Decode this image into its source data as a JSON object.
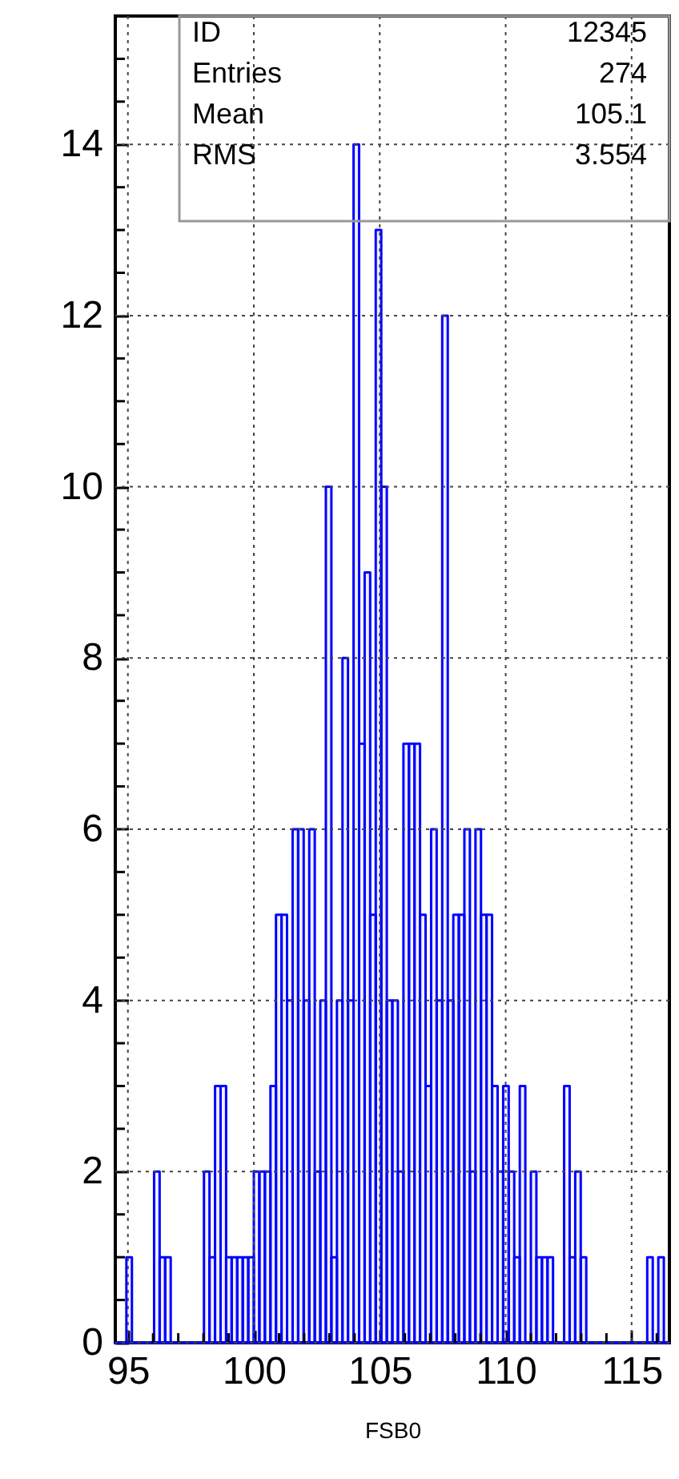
{
  "chart_data": {
    "type": "histogram",
    "xlabel": "FSB0",
    "color": "#0000ff",
    "bins": [
      94.5,
      94.72,
      94.94,
      95.16,
      95.38,
      95.6,
      95.82,
      96.04,
      96.26,
      96.48,
      96.7,
      96.92,
      97.14,
      97.36,
      97.58,
      97.8,
      98.02,
      98.24,
      98.46,
      98.68,
      98.9,
      99.12,
      99.34,
      99.56,
      99.78,
      100,
      100.22,
      100.44,
      100.66,
      100.88,
      101.1,
      101.32,
      101.54,
      101.76,
      101.98,
      102.2,
      102.42,
      102.64,
      102.86,
      103.08,
      103.3,
      103.52,
      103.74,
      103.96,
      104.18,
      104.4,
      104.62,
      104.84,
      105.06,
      105.28,
      105.5,
      105.72,
      105.94,
      106.16,
      106.38,
      106.6,
      106.82,
      107.04,
      107.26,
      107.48,
      107.7,
      107.92,
      108.14,
      108.36,
      108.58,
      108.8,
      109.02,
      109.24,
      109.46,
      109.68,
      109.9,
      110.12,
      110.34,
      110.56,
      110.78,
      111,
      111.22,
      111.44,
      111.66,
      111.88,
      112.1,
      112.32,
      112.54,
      112.76,
      112.98,
      113.2,
      113.42,
      113.64,
      113.86,
      114.08,
      114.3,
      114.52,
      114.74,
      114.96,
      115.18,
      115.4,
      115.62,
      115.84,
      116.06,
      116.28,
      116.5
    ],
    "values": [
      0,
      0,
      1,
      0,
      0,
      0,
      0,
      2,
      1,
      1,
      0,
      0,
      0,
      0,
      0,
      0,
      2,
      1,
      3,
      3,
      1,
      1,
      1,
      1,
      1,
      2,
      2,
      2,
      3,
      5,
      5,
      4,
      6,
      6,
      4,
      6,
      2,
      4,
      10,
      1,
      4,
      8,
      4,
      14,
      7,
      9,
      5,
      13,
      10,
      4,
      4,
      2,
      7,
      7,
      7,
      5,
      3,
      6,
      4,
      12,
      4,
      5,
      5,
      6,
      2,
      6,
      5,
      5,
      3,
      2,
      3,
      2,
      1,
      3,
      0,
      2,
      1,
      1,
      1,
      0,
      0,
      3,
      1,
      2,
      1,
      0,
      0,
      0,
      0,
      0,
      0,
      0,
      0,
      0,
      0,
      0,
      1,
      0,
      1,
      0
    ],
    "xlim": [
      94.5,
      116.5
    ],
    "xticks": [
      95,
      {
        "value": 96,
        "label": null
      },
      {
        "value": 97,
        "label": null
      },
      {
        "value": 98,
        "label": null
      },
      {
        "value": 99,
        "label": null
      },
      100,
      {
        "value": 101,
        "label": null
      },
      {
        "value": 102,
        "label": null
      },
      {
        "value": 103,
        "label": null
      },
      {
        "value": 104,
        "label": null
      },
      105,
      {
        "value": 106,
        "label": null
      },
      {
        "value": 107,
        "label": null
      },
      {
        "value": 108,
        "label": null
      },
      {
        "value": 109,
        "label": null
      },
      110,
      {
        "value": 111,
        "label": null
      },
      {
        "value": 112,
        "label": null
      },
      {
        "value": 113,
        "label": null
      },
      {
        "value": 114,
        "label": null
      },
      115,
      {
        "value": 116,
        "label": null
      }
    ],
    "ylim": [
      0,
      15.5
    ],
    "yticks": [
      0,
      {
        "value": 0.5,
        "label": null
      },
      {
        "value": 1,
        "label": null
      },
      {
        "value": 1.5,
        "label": null
      },
      2,
      {
        "value": 2.5,
        "label": null
      },
      {
        "value": 3,
        "label": null
      },
      {
        "value": 3.5,
        "label": null
      },
      4,
      {
        "value": 4.5,
        "label": null
      },
      {
        "value": 5,
        "label": null
      },
      {
        "value": 5.5,
        "label": null
      },
      6,
      {
        "value": 6.5,
        "label": null
      },
      {
        "value": 7,
        "label": null
      },
      {
        "value": 7.5,
        "label": null
      },
      8,
      {
        "value": 8.5,
        "label": null
      },
      {
        "value": 9,
        "label": null
      },
      {
        "value": 9.5,
        "label": null
      },
      10,
      {
        "value": 10.5,
        "label": null
      },
      {
        "value": 11,
        "label": null
      },
      {
        "value": 11.5,
        "label": null
      },
      12,
      {
        "value": 12.5,
        "label": null
      },
      {
        "value": 13,
        "label": null
      },
      {
        "value": 13.5,
        "label": null
      },
      14,
      {
        "value": 14.5,
        "label": null
      },
      {
        "value": 15,
        "label": null
      }
    ],
    "grid": true,
    "annotations": [
      "ID",
      "12345",
      "Entries",
      "274",
      "Mean",
      "105.1",
      "RMS",
      "3.554"
    ]
  }
}
